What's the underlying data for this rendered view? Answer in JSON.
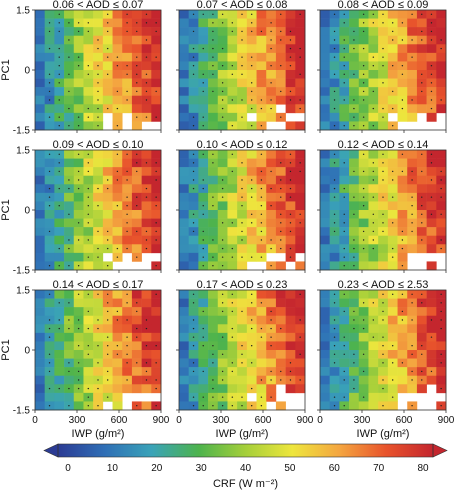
{
  "chart_data": {
    "type": "heatmap",
    "panel_titles": [
      "0.06 < AOD ≤ 0.07",
      "0.07 < AOD ≤ 0.08",
      "0.08 < AOD ≤ 0.09",
      "0.09 < AOD ≤ 0.10",
      "0.10 < AOD ≤ 0.12",
      "0.12 < AOD ≤ 0.14",
      "0.14 < AOD ≤ 0.17",
      "0.17 < AOD ≤ 0.23",
      "0.23 < AOD ≤ 2.53"
    ],
    "xlabel": "IWP (g/m²)",
    "ylabel": "PC1",
    "xlim": [
      0,
      900
    ],
    "ylim": [
      -1.5,
      1.5
    ],
    "xticks": [
      "0",
      "300",
      "600",
      "900"
    ],
    "yticks": [
      "1.5",
      "0",
      "-1.5"
    ],
    "grid_cols": 13,
    "grid_rows": 14,
    "colorbar": {
      "label": "CRF (W m⁻²)",
      "ticks": [
        "0",
        "10",
        "20",
        "30",
        "40",
        "50",
        "60",
        "70",
        "80"
      ],
      "range": [
        0,
        80
      ],
      "extend": "both",
      "colors": [
        "#2b3b94",
        "#2f6fb6",
        "#3aa3b8",
        "#4db34d",
        "#a5cf3a",
        "#eee63d",
        "#f4a640",
        "#e8532c",
        "#c4262e"
      ]
    },
    "pattern": "CRF increases with IWP (blue near IWP 0, red near IWP 900); stippling marks statistically significant cells; white cells have no data"
  }
}
